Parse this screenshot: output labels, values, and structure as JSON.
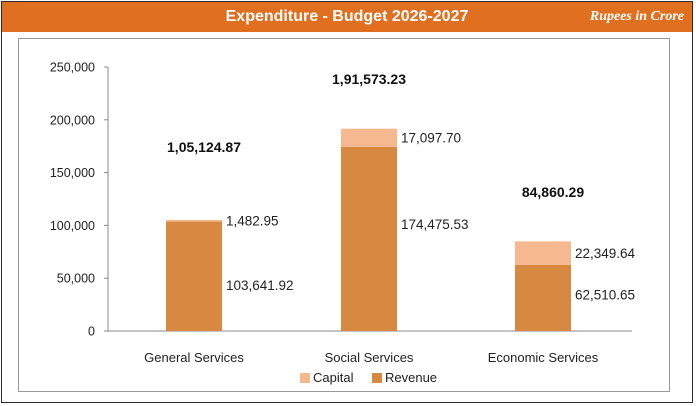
{
  "header": {
    "title": "Expenditure - Budget 2026-2027",
    "units": "Rupees in Crore"
  },
  "colors": {
    "banner": "#e0701f",
    "revenue": "#d88941",
    "capital": "#f6b98f"
  },
  "chart_data": {
    "type": "bar",
    "stacked": true,
    "categories": [
      "General Services",
      "Social Services",
      "Economic Services"
    ],
    "series": [
      {
        "name": "Revenue",
        "values": [
          103641.92,
          174475.53,
          62510.65
        ],
        "labels": [
          "103,641.92",
          "174,475.53",
          "62,510.65"
        ]
      },
      {
        "name": "Capital",
        "values": [
          1482.95,
          17097.7,
          22349.64
        ],
        "labels": [
          "1,482.95",
          "17,097.70",
          "22,349.64"
        ]
      }
    ],
    "totals": [
      105124.87,
      191573.23,
      84860.29
    ],
    "total_labels": [
      "1,05,124.87",
      "1,91,573.23",
      "84,860.29"
    ],
    "ylim": [
      0,
      250000
    ],
    "yticks": [
      0,
      50000,
      100000,
      150000,
      200000,
      250000
    ],
    "ytick_labels": [
      "0",
      "50,000",
      "100,000",
      "150,000",
      "200,000",
      "250,000"
    ],
    "legend": [
      "Capital",
      "Revenue"
    ],
    "legend_position": "bottom",
    "grid": false
  }
}
